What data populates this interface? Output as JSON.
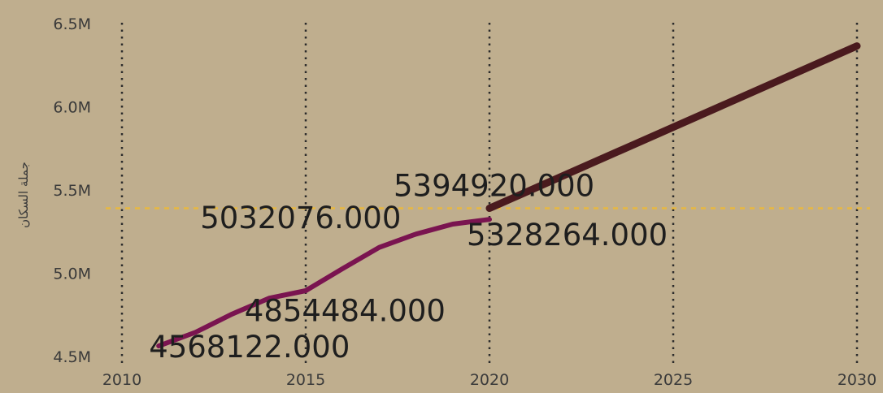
{
  "chart_data": {
    "type": "line",
    "ylabel": "جملة السكان",
    "xlim": [
      2010,
      2030
    ],
    "ylim": [
      4500000,
      6500000
    ],
    "x_ticks": [
      2010,
      2015,
      2020,
      2025,
      2030
    ],
    "x_tick_labels": [
      "2010",
      "2015",
      "2020",
      "2025",
      "2030"
    ],
    "y_ticks": [
      4500000,
      5000000,
      5500000,
      6000000,
      6500000
    ],
    "y_tick_labels": [
      "4.5M",
      "5.0M",
      "5.5M",
      "6.0M",
      "6.5M"
    ],
    "grid": "vertical dotted",
    "reference_line": {
      "y": 5394920,
      "color": "#e8b840",
      "style": "dashed"
    },
    "series": [
      {
        "color": "#7a1450",
        "x": [
          2011,
          2012,
          2013,
          2014,
          2015,
          2016,
          2017,
          2018,
          2019,
          2020
        ],
        "y": [
          4568122,
          4650000,
          4760000,
          4854484,
          4900000,
          5032076,
          5160000,
          5240000,
          5300000,
          5328264
        ]
      },
      {
        "color": "#4a1a1e",
        "x": [
          2020,
          2030
        ],
        "y": [
          5394920,
          6370000
        ]
      }
    ],
    "data_labels": [
      {
        "x": 2011,
        "y": 4568122,
        "text": "4568122.000"
      },
      {
        "x": 2014,
        "y": 4854484,
        "text": "4854484.000"
      },
      {
        "x": 2016,
        "y": 5032076,
        "text": "5032076.000"
      },
      {
        "x": 2020,
        "y": 5328264,
        "text": "5328264.000"
      },
      {
        "x": 2020,
        "y": 5394920,
        "text": "5394920.000"
      }
    ],
    "colors": {
      "background": "#bfae8e",
      "grid": "#2b2b2b",
      "tick_text": "#3a3a3a",
      "label_text": "#1e1e1e"
    }
  }
}
